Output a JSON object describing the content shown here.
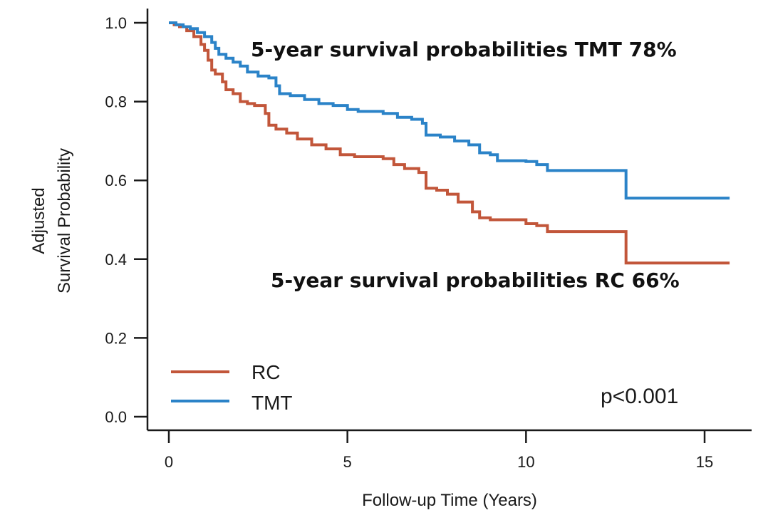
{
  "chart_data": {
    "type": "line",
    "title": "",
    "xlabel": "Follow-up Time (Years)",
    "ylabel_lines": [
      "Adjusted",
      "Survival Probability"
    ],
    "xlim": [
      0,
      15.7
    ],
    "ylim": [
      0,
      1.0
    ],
    "x_ticks": [
      0,
      5,
      10,
      15
    ],
    "x_tick_labels": [
      "0",
      "5",
      "10",
      "15"
    ],
    "y_ticks": [
      0.0,
      0.2,
      0.4,
      0.6,
      0.8,
      1.0
    ],
    "y_tick_labels": [
      "0.0",
      "0.2",
      "0.4",
      "0.6",
      "0.8",
      "1.0"
    ],
    "grid": false,
    "legend_position": "bottom-left",
    "step": true,
    "series": [
      {
        "name": "RC",
        "color": "#c2563a",
        "points": [
          [
            0,
            1.0
          ],
          [
            0.15,
            0.995
          ],
          [
            0.3,
            0.99
          ],
          [
            0.5,
            0.98
          ],
          [
            0.7,
            0.965
          ],
          [
            0.9,
            0.945
          ],
          [
            1.0,
            0.93
          ],
          [
            1.1,
            0.905
          ],
          [
            1.2,
            0.88
          ],
          [
            1.3,
            0.87
          ],
          [
            1.5,
            0.85
          ],
          [
            1.6,
            0.83
          ],
          [
            1.8,
            0.82
          ],
          [
            2.0,
            0.8
          ],
          [
            2.2,
            0.795
          ],
          [
            2.4,
            0.79
          ],
          [
            2.6,
            0.79
          ],
          [
            2.7,
            0.77
          ],
          [
            2.8,
            0.74
          ],
          [
            3.0,
            0.73
          ],
          [
            3.3,
            0.72
          ],
          [
            3.6,
            0.705
          ],
          [
            4.0,
            0.69
          ],
          [
            4.4,
            0.68
          ],
          [
            4.8,
            0.665
          ],
          [
            5.2,
            0.66
          ],
          [
            5.6,
            0.66
          ],
          [
            6.0,
            0.655
          ],
          [
            6.3,
            0.64
          ],
          [
            6.6,
            0.63
          ],
          [
            7.0,
            0.62
          ],
          [
            7.2,
            0.58
          ],
          [
            7.5,
            0.575
          ],
          [
            7.8,
            0.565
          ],
          [
            8.1,
            0.545
          ],
          [
            8.5,
            0.52
          ],
          [
            8.7,
            0.505
          ],
          [
            9.0,
            0.5
          ],
          [
            9.5,
            0.5
          ],
          [
            10.0,
            0.49
          ],
          [
            10.3,
            0.485
          ],
          [
            10.6,
            0.47
          ],
          [
            11.0,
            0.47
          ],
          [
            11.5,
            0.47
          ],
          [
            12.0,
            0.47
          ],
          [
            12.5,
            0.47
          ],
          [
            12.8,
            0.39
          ],
          [
            13.5,
            0.39
          ],
          [
            14.5,
            0.39
          ],
          [
            15.7,
            0.39
          ]
        ]
      },
      {
        "name": "TMT",
        "color": "#2b83c8",
        "points": [
          [
            0,
            1.0
          ],
          [
            0.2,
            0.995
          ],
          [
            0.4,
            0.99
          ],
          [
            0.6,
            0.985
          ],
          [
            0.8,
            0.975
          ],
          [
            1.0,
            0.965
          ],
          [
            1.2,
            0.95
          ],
          [
            1.3,
            0.935
          ],
          [
            1.4,
            0.92
          ],
          [
            1.6,
            0.91
          ],
          [
            1.8,
            0.9
          ],
          [
            2.0,
            0.89
          ],
          [
            2.2,
            0.875
          ],
          [
            2.5,
            0.865
          ],
          [
            2.8,
            0.86
          ],
          [
            3.0,
            0.84
          ],
          [
            3.1,
            0.82
          ],
          [
            3.4,
            0.815
          ],
          [
            3.8,
            0.805
          ],
          [
            4.2,
            0.795
          ],
          [
            4.6,
            0.79
          ],
          [
            5.0,
            0.78
          ],
          [
            5.3,
            0.775
          ],
          [
            5.7,
            0.775
          ],
          [
            6.0,
            0.77
          ],
          [
            6.4,
            0.76
          ],
          [
            6.8,
            0.755
          ],
          [
            7.1,
            0.745
          ],
          [
            7.2,
            0.715
          ],
          [
            7.6,
            0.71
          ],
          [
            8.0,
            0.7
          ],
          [
            8.4,
            0.69
          ],
          [
            8.7,
            0.67
          ],
          [
            9.0,
            0.665
          ],
          [
            9.2,
            0.65
          ],
          [
            9.6,
            0.65
          ],
          [
            10.0,
            0.648
          ],
          [
            10.3,
            0.64
          ],
          [
            10.6,
            0.625
          ],
          [
            11.0,
            0.625
          ],
          [
            11.5,
            0.625
          ],
          [
            12.0,
            0.625
          ],
          [
            12.7,
            0.625
          ],
          [
            12.8,
            0.555
          ],
          [
            13.5,
            0.555
          ],
          [
            14.5,
            0.555
          ],
          [
            15.7,
            0.555
          ]
        ]
      }
    ],
    "annotations": [
      {
        "text": "5-year survival probabilities TMT 78%"
      },
      {
        "text": "5-year survival probabilities RC 66%"
      },
      {
        "text": "p<0.001"
      }
    ]
  }
}
